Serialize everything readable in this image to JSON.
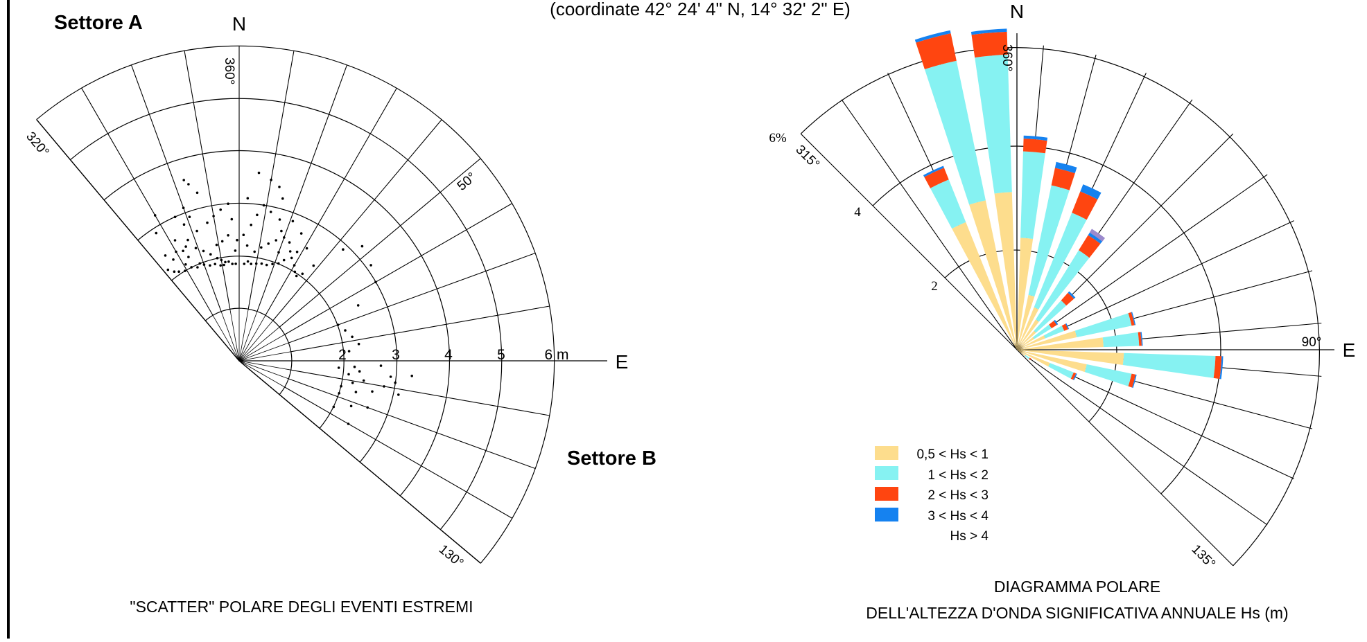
{
  "header": {
    "coordinates": "(coordinate 42° 24' 4\" N, 14° 32' 2\" E)"
  },
  "colors": {
    "hs_05_1": "#FDDD8D",
    "hs_1_2": "#86F2F2",
    "hs_2_3": "#FF4510",
    "hs_3_4": "#1582F0",
    "hs_gt4": "#9B8ACD",
    "lines": "#000000"
  },
  "left_chart": {
    "sector_a": "Settore A",
    "sector_b": "Settore B",
    "north_label": "N",
    "east_label": "E",
    "angle_labels": [
      "360°",
      "320°",
      "50°",
      "130°"
    ],
    "radial_labels": [
      "2",
      "3",
      "4",
      "5",
      "6 m"
    ],
    "title": "\"SCATTER\" POLARE DEGLI EVENTI ESTREMI"
  },
  "right_chart": {
    "north_label": "N",
    "east_label": "E",
    "angle_labels": [
      "360°",
      "315°",
      "90°",
      "135°"
    ],
    "radial_labels": [
      "2",
      "4",
      "6%"
    ],
    "title_line1": "DIAGRAMMA POLARE",
    "title_line2": "DELL'ALTEZZA D'ONDA SIGNIFICATIVA ANNUALE Hs (m)",
    "legend": [
      {
        "label": "0,5 < Hs < 1",
        "color": "#FDDD8D"
      },
      {
        "label": "1 < Hs < 2",
        "color": "#86F2F2"
      },
      {
        "label": "2 < Hs < 3",
        "color": "#FF4510"
      },
      {
        "label": "3 < Hs < 4",
        "color": "#1582F0"
      },
      {
        "label": "Hs > 4",
        "color": ""
      }
    ]
  },
  "chart_data": [
    {
      "type": "scatter",
      "title": "\"SCATTER\" POLARE DEGLI EVENTI ESTREMI",
      "coordinate_system": "polar",
      "angle_range_deg": [
        320,
        130
      ],
      "radial_unit": "m",
      "radial_ticks": [
        2,
        3,
        4,
        5,
        6
      ],
      "sectors": [
        "Settore A",
        "Settore B"
      ],
      "points": [
        [
          -17,
          3.6
        ],
        [
          -16,
          3.5
        ],
        [
          -14,
          3.3
        ],
        [
          -20,
          3.1
        ],
        [
          -24,
          3.0
        ],
        [
          -19,
          2.9
        ],
        [
          -22,
          2.8
        ],
        [
          -30,
          3.2
        ],
        [
          -33,
          2.9
        ],
        [
          -28,
          2.6
        ],
        [
          -25,
          2.4
        ],
        [
          -21,
          2.3
        ],
        [
          -18,
          2.2
        ],
        [
          -15,
          2.1
        ],
        [
          -12,
          2.0
        ],
        [
          -10,
          1.95
        ],
        [
          -8,
          1.9
        ],
        [
          -6,
          1.9
        ],
        [
          -4,
          1.85
        ],
        [
          -2,
          1.85
        ],
        [
          -26,
          2.2
        ],
        [
          -29,
          2.1
        ],
        [
          -31,
          2.0
        ],
        [
          -34,
          2.05
        ],
        [
          -36,
          2.1
        ],
        [
          -38,
          2.2
        ],
        [
          -27,
          2.0
        ],
        [
          -24,
          1.95
        ],
        [
          -22,
          2.0
        ],
        [
          -20,
          1.95
        ],
        [
          -17,
          1.9
        ],
        [
          -14,
          1.9
        ],
        [
          -11,
          1.85
        ],
        [
          -9,
          1.85
        ],
        [
          -27,
          2.35
        ],
        [
          -30,
          2.4
        ],
        [
          -33,
          2.3
        ],
        [
          -35,
          2.45
        ],
        [
          -23,
          2.5
        ],
        [
          -18,
          2.6
        ],
        [
          -13,
          2.7
        ],
        [
          -10,
          2.8
        ],
        [
          -7,
          2.9
        ],
        [
          -4,
          3.0
        ],
        [
          -3,
          2.7
        ],
        [
          -5,
          2.4
        ],
        [
          -8,
          2.3
        ],
        [
          -11,
          2.25
        ],
        [
          -2,
          2.1
        ],
        [
          -1,
          2.3
        ],
        [
          6,
          3.6
        ],
        [
          10,
          3.5
        ],
        [
          13,
          3.4
        ],
        [
          15,
          3.2
        ],
        [
          9,
          3.0
        ],
        [
          12,
          2.9
        ],
        [
          16,
          2.8
        ],
        [
          18,
          2.6
        ],
        [
          20,
          2.5
        ],
        [
          23,
          2.45
        ],
        [
          25,
          2.3
        ],
        [
          27,
          2.2
        ],
        [
          30,
          2.1
        ],
        [
          32,
          2.0
        ],
        [
          34,
          1.95
        ],
        [
          36,
          2.05
        ],
        [
          22,
          2.0
        ],
        [
          19,
          1.95
        ],
        [
          16,
          1.9
        ],
        [
          13,
          1.9
        ],
        [
          10,
          1.88
        ],
        [
          7,
          1.86
        ],
        [
          5,
          1.9
        ],
        [
          3,
          1.85
        ],
        [
          8,
          2.1
        ],
        [
          11,
          2.2
        ],
        [
          14,
          2.3
        ],
        [
          17,
          2.4
        ],
        [
          20,
          2.2
        ],
        [
          24,
          2.1
        ],
        [
          28,
          2.35
        ],
        [
          31,
          2.5
        ],
        [
          5,
          2.6
        ],
        [
          7,
          2.8
        ],
        [
          3,
          3.1
        ],
        [
          2,
          2.4
        ],
        [
          4,
          2.2
        ],
        [
          26,
          2.7
        ],
        [
          21,
          2.85
        ],
        [
          38,
          2.3
        ],
        [
          43,
          2.9
        ],
        [
          47,
          3.2
        ],
        [
          54,
          3.1
        ],
        [
          60,
          3.0
        ],
        [
          65,
          2.5
        ],
        [
          70,
          2.0
        ],
        [
          74,
          2.1
        ],
        [
          78,
          2.2
        ],
        [
          82,
          2.3
        ],
        [
          85,
          2.1
        ],
        [
          93,
          2.2
        ],
        [
          95,
          2.3
        ],
        [
          97,
          2.1
        ],
        [
          99,
          2.4
        ],
        [
          101,
          2.2
        ],
        [
          103,
          2.6
        ],
        [
          92,
          2.7
        ],
        [
          96,
          2.9
        ],
        [
          100,
          2.8
        ],
        [
          105,
          2.3
        ],
        [
          108,
          2.0
        ],
        [
          112,
          2.3
        ],
        [
          116,
          2.0
        ],
        [
          120,
          2.4
        ],
        [
          95,
          3.3
        ],
        [
          98,
          3.0
        ],
        [
          102,
          3.1
        ],
        [
          94,
          1.9
        ],
        [
          104,
          2.0
        ],
        [
          110,
          2.6
        ]
      ]
    },
    {
      "type": "bar",
      "subtype": "polar-stacked-rose",
      "title": "DIAGRAMMA POLARE DELL'ALTEZZA D'ONDA SIGNIFICATIVA ANNUALE Hs (m)",
      "radial_unit": "%",
      "radial_ticks": [
        2,
        4,
        6
      ],
      "angle_range_deg": [
        315,
        135
      ],
      "categories": [
        "325°",
        "335°",
        "345°",
        "355°",
        "5°",
        "15°",
        "25°",
        "35°",
        "45°",
        "55°",
        "65°",
        "75°",
        "85°",
        "95°",
        "105°",
        "115°",
        "125°"
      ],
      "series": [
        {
          "name": "0,5 < Hs < 1",
          "values": [
            0.0,
            2.7,
            3.0,
            3.1,
            2.2,
            1.1,
            0.9,
            0.7,
            0.5,
            0.4,
            0.6,
            1.2,
            1.7,
            2.1,
            1.4,
            0.7,
            0.2
          ]
        },
        {
          "name": "1 < Hs < 2",
          "values": [
            0.0,
            0.9,
            2.8,
            2.7,
            1.7,
            2.2,
            2.0,
            1.6,
            0.8,
            0.4,
            0.4,
            1.1,
            0.7,
            1.8,
            0.9,
            0.5,
            0.1
          ]
        },
        {
          "name": "2 < Hs < 3",
          "values": [
            0.0,
            0.25,
            0.55,
            0.45,
            0.25,
            0.35,
            0.45,
            0.35,
            0.2,
            0.12,
            0.08,
            0.06,
            0.05,
            0.12,
            0.08,
            0.05,
            0.03
          ]
        },
        {
          "name": "3 < Hs < 4",
          "values": [
            0.0,
            0.04,
            0.06,
            0.06,
            0.06,
            0.12,
            0.15,
            0.06,
            0.04,
            0.03,
            0.02,
            0.02,
            0.02,
            0.03,
            0.02,
            0.02,
            0.0
          ]
        },
        {
          "name": "Hs > 4",
          "values": [
            0.0,
            0.0,
            0.0,
            0.0,
            0.0,
            0.0,
            0.0,
            0.08,
            0.0,
            0.0,
            0.0,
            0.0,
            0.0,
            0.0,
            0.0,
            0.0,
            0.0
          ]
        }
      ]
    }
  ]
}
